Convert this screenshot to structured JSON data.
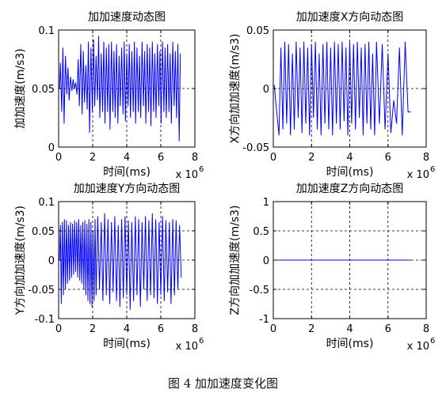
{
  "caption": "图 4  加加速度变化图",
  "chart_data": [
    {
      "type": "line",
      "title": "加加速度动态图",
      "xlabel": "时间(ms)",
      "ylabel": "加加速度(m/s3)",
      "x_multiplier": "x 10",
      "x_multiplier_exp": "6",
      "xlim": [
        0,
        8
      ],
      "ylim": [
        0,
        0.1
      ],
      "xticks": [
        0,
        2,
        4,
        6,
        8
      ],
      "xtick_labels": [
        "0",
        "2",
        "4",
        "6",
        "8"
      ],
      "yticks": [
        0,
        0.05,
        0.1
      ],
      "ytick_labels": [
        "0",
        "0.05",
        "0.1"
      ],
      "grid": "dashed",
      "line_color": "#0000ff",
      "series": [
        {
          "x": [
            0.05,
            0.1,
            0.18,
            0.25,
            0.32,
            0.4,
            0.48,
            0.55,
            0.62,
            0.7,
            0.78,
            0.85,
            0.92,
            1.0,
            1.08,
            1.15,
            1.22,
            1.3,
            1.38,
            1.45,
            1.52,
            1.6,
            1.68,
            1.75,
            1.82,
            1.9,
            1.98,
            2.05,
            2.12,
            2.2,
            2.28,
            2.35,
            2.42,
            2.5,
            2.58,
            2.65,
            2.72,
            2.8,
            2.88,
            2.95,
            3.02,
            3.1,
            3.18,
            3.25,
            3.32,
            3.4,
            3.48,
            3.55,
            3.62,
            3.7,
            3.78,
            3.85,
            3.92,
            4.0,
            4.08,
            4.15,
            4.22,
            4.3,
            4.38,
            4.45,
            4.52,
            4.6,
            4.68,
            4.75,
            4.82,
            4.9,
            4.98,
            5.05,
            5.12,
            5.2,
            5.28,
            5.35,
            5.42,
            5.5,
            5.58,
            5.65,
            5.72,
            5.8,
            5.88,
            5.95,
            6.02,
            6.1,
            6.18,
            6.25,
            6.32,
            6.4,
            6.48,
            6.55,
            6.62,
            6.7,
            6.78,
            6.85,
            6.92,
            7.0,
            7.08,
            7.15
          ],
          "y": [
            0.05,
            0.072,
            0.03,
            0.085,
            0.02,
            0.078,
            0.045,
            0.068,
            0.04,
            0.06,
            0.048,
            0.058,
            0.05,
            0.055,
            0.045,
            0.075,
            0.035,
            0.088,
            0.028,
            0.082,
            0.038,
            0.07,
            0.032,
            0.09,
            0.012,
            0.085,
            0.03,
            0.092,
            0.035,
            0.078,
            0.04,
            0.095,
            0.025,
            0.08,
            0.03,
            0.09,
            0.02,
            0.085,
            0.03,
            0.088,
            0.015,
            0.09,
            0.03,
            0.082,
            0.025,
            0.088,
            0.02,
            0.078,
            0.035,
            0.085,
            0.028,
            0.09,
            0.022,
            0.08,
            0.035,
            0.088,
            0.025,
            0.082,
            0.03,
            0.09,
            0.02,
            0.085,
            0.03,
            0.078,
            0.025,
            0.09,
            0.035,
            0.082,
            0.02,
            0.088,
            0.03,
            0.085,
            0.018,
            0.09,
            0.03,
            0.08,
            0.025,
            0.088,
            0.035,
            0.082,
            0.02,
            0.09,
            0.03,
            0.085,
            0.025,
            0.088,
            0.03,
            0.08,
            0.02,
            0.09,
            0.035,
            0.082,
            0.025,
            0.088,
            0.005,
            0.08
          ]
        }
      ]
    },
    {
      "type": "line",
      "title": "加加速度X方向动态图",
      "xlabel": "时间(ms)",
      "ylabel": "X方向加加速度(m/s3)",
      "x_multiplier": "x 10",
      "x_multiplier_exp": "6",
      "xlim": [
        0,
        8
      ],
      "ylim": [
        -0.05,
        0.05
      ],
      "xticks": [
        0,
        2,
        4,
        6,
        8
      ],
      "xtick_labels": [
        "0",
        "2",
        "4",
        "6",
        "8"
      ],
      "yticks": [
        -0.05,
        0,
        0.05
      ],
      "ytick_labels": [
        "-0.05",
        "0",
        "0.05"
      ],
      "grid": "dashed",
      "line_color": "#0000ff",
      "series": [
        {
          "x": [
            0.05,
            0.18,
            0.3,
            0.4,
            0.5,
            0.6,
            0.7,
            0.8,
            0.9,
            1.0,
            1.1,
            1.2,
            1.3,
            1.4,
            1.5,
            1.6,
            1.7,
            1.8,
            1.9,
            2.0,
            2.1,
            2.2,
            2.3,
            2.4,
            2.5,
            2.6,
            2.7,
            2.8,
            2.9,
            3.0,
            3.1,
            3.2,
            3.3,
            3.4,
            3.5,
            3.6,
            3.7,
            3.8,
            3.9,
            4.0,
            4.1,
            4.2,
            4.3,
            4.4,
            4.5,
            4.6,
            4.7,
            4.8,
            4.9,
            5.0,
            5.1,
            5.2,
            5.3,
            5.4,
            5.55,
            5.7,
            5.85,
            6.0,
            6.15,
            6.3,
            6.45,
            6.6,
            6.75,
            6.9,
            7.05,
            7.2
          ],
          "y": [
            0.003,
            -0.02,
            -0.04,
            0.035,
            -0.035,
            0.04,
            -0.03,
            0.038,
            -0.04,
            0.03,
            -0.035,
            0.04,
            -0.025,
            0.035,
            -0.038,
            0.04,
            -0.03,
            0.035,
            -0.04,
            0.038,
            -0.025,
            0.04,
            -0.035,
            0.03,
            -0.04,
            0.038,
            -0.03,
            0.04,
            -0.035,
            0.035,
            -0.04,
            0.04,
            -0.03,
            0.038,
            -0.035,
            0.04,
            -0.028,
            0.035,
            -0.04,
            0.04,
            -0.03,
            0.038,
            -0.035,
            0.04,
            -0.025,
            0.035,
            -0.04,
            0.038,
            -0.03,
            0.04,
            -0.035,
            0.03,
            -0.04,
            0.04,
            -0.03,
            0.038,
            -0.035,
            0.03,
            -0.038,
            -0.01,
            -0.03,
            0.035,
            -0.04,
            0.04,
            -0.02,
            -0.02
          ]
        }
      ]
    },
    {
      "type": "line",
      "title": "加加速度Y方向动态图",
      "xlabel": "时间(ms)",
      "ylabel": "Y方向加加速度(m/s3)",
      "x_multiplier": "x 10",
      "x_multiplier_exp": "6",
      "xlim": [
        0,
        8
      ],
      "ylim": [
        -0.1,
        0.1
      ],
      "xticks": [
        0,
        2,
        4,
        6,
        8
      ],
      "xtick_labels": [
        "0",
        "2",
        "4",
        "6",
        "8"
      ],
      "yticks": [
        -0.1,
        -0.05,
        0,
        0.05,
        0.1
      ],
      "ytick_labels": [
        "-0.1",
        "-0.05",
        "0",
        "0.05",
        "0.1"
      ],
      "grid": "dashed",
      "line_color": "#0000ff",
      "series": [
        {
          "x": [
            0.05,
            0.1,
            0.16,
            0.22,
            0.28,
            0.34,
            0.4,
            0.46,
            0.52,
            0.58,
            0.64,
            0.7,
            0.76,
            0.82,
            0.88,
            0.94,
            1.0,
            1.06,
            1.12,
            1.18,
            1.24,
            1.3,
            1.36,
            1.42,
            1.48,
            1.54,
            1.6,
            1.66,
            1.72,
            1.78,
            1.84,
            1.9,
            1.96,
            2.02,
            2.08,
            2.14,
            2.2,
            2.3,
            2.4,
            2.5,
            2.6,
            2.7,
            2.8,
            2.9,
            3.0,
            3.1,
            3.2,
            3.3,
            3.4,
            3.5,
            3.6,
            3.7,
            3.8,
            3.9,
            4.0,
            4.1,
            4.2,
            4.3,
            4.4,
            4.5,
            4.6,
            4.7,
            4.8,
            4.9,
            5.0,
            5.1,
            5.2,
            5.3,
            5.4,
            5.5,
            5.6,
            5.7,
            5.8,
            5.9,
            6.0,
            6.1,
            6.2,
            6.3,
            6.4,
            6.5,
            6.6,
            6.7,
            6.8,
            6.9,
            7.0,
            7.1,
            7.2
          ],
          "y": [
            0.0,
            0.06,
            -0.075,
            0.065,
            -0.06,
            0.07,
            -0.05,
            0.068,
            -0.04,
            0.06,
            -0.035,
            0.065,
            -0.03,
            0.062,
            -0.025,
            0.068,
            -0.02,
            0.065,
            -0.03,
            0.07,
            -0.035,
            0.06,
            -0.04,
            0.065,
            -0.05,
            0.068,
            -0.06,
            0.062,
            -0.07,
            0.07,
            -0.075,
            0.065,
            -0.08,
            0.05,
            -0.07,
            0.07,
            -0.06,
            0.075,
            -0.05,
            0.065,
            -0.07,
            0.08,
            -0.06,
            0.07,
            -0.075,
            0.065,
            -0.055,
            0.075,
            -0.07,
            0.06,
            -0.08,
            0.07,
            -0.065,
            0.075,
            -0.06,
            0.068,
            -0.085,
            0.065,
            -0.07,
            0.075,
            -0.06,
            0.07,
            -0.08,
            0.065,
            -0.05,
            0.075,
            -0.07,
            0.068,
            -0.06,
            0.08,
            -0.065,
            0.07,
            -0.075,
            0.065,
            -0.06,
            0.075,
            -0.07,
            0.068,
            -0.055,
            0.065,
            -0.075,
            0.07,
            -0.06,
            0.068,
            -0.05,
            0.06,
            -0.03
          ]
        }
      ]
    },
    {
      "type": "line",
      "title": "加加速度Z方向动态图",
      "xlabel": "时间(ms)",
      "ylabel": "Z方向加加速度(m/s3)",
      "x_multiplier": "x 10",
      "x_multiplier_exp": "6",
      "xlim": [
        0,
        8
      ],
      "ylim": [
        -1,
        1
      ],
      "xticks": [
        0,
        2,
        4,
        6,
        8
      ],
      "xtick_labels": [
        "0",
        "2",
        "4",
        "6",
        "8"
      ],
      "yticks": [
        -1,
        -0.5,
        0,
        0.5,
        1
      ],
      "ytick_labels": [
        "-1",
        "-0.5",
        "0",
        "0.5",
        "1"
      ],
      "grid": "dashed",
      "line_color": "#0000ff",
      "series": [
        {
          "x": [
            0,
            7.2
          ],
          "y": [
            0,
            0
          ]
        }
      ]
    }
  ]
}
